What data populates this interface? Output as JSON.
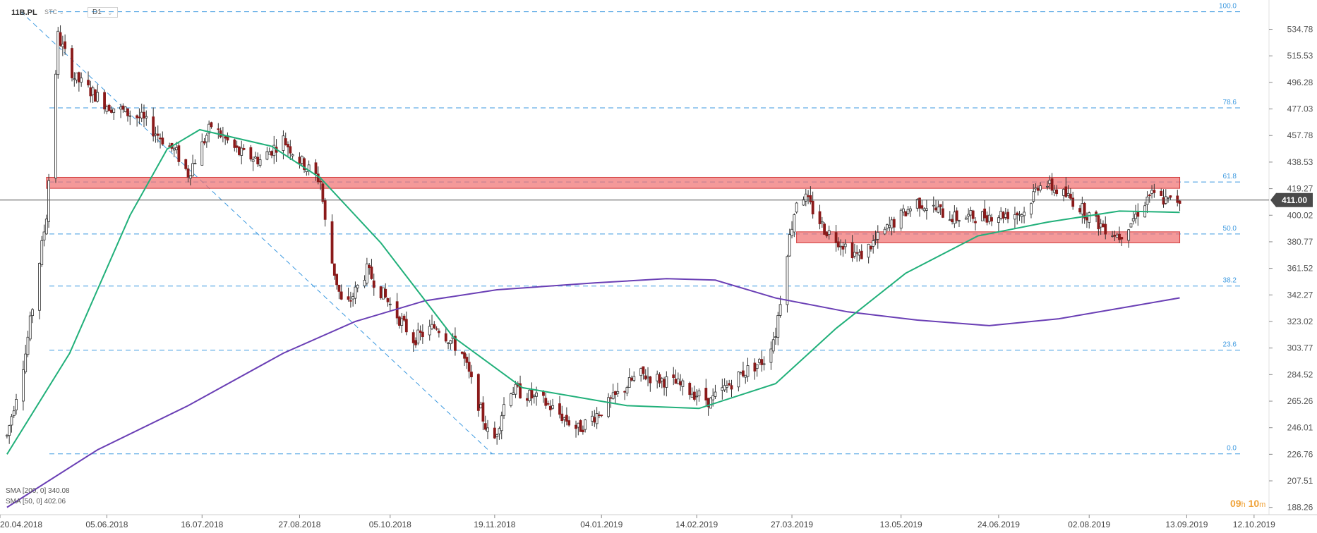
{
  "header": {
    "symbol": "11B.PL",
    "chart_type": "STC",
    "timeframe": "D1"
  },
  "timer": {
    "hours": "09",
    "h": "h",
    "minutes": "10",
    "m": "m"
  },
  "legend": [
    {
      "label": "SMA [200, 0] 340.08",
      "color": "#6a3fb5"
    },
    {
      "label": "SMA [50, 0] 402.06",
      "color": "#21b07a"
    }
  ],
  "chart_data": {
    "type": "candlestick",
    "price_axis": {
      "ticks": [
        "534.78",
        "515.53",
        "496.28",
        "477.03",
        "457.78",
        "438.53",
        "419.27",
        "400.02",
        "380.77",
        "361.52",
        "342.27",
        "323.02",
        "303.77",
        "284.52",
        "265.26",
        "246.01",
        "226.76",
        "207.51",
        "188.26"
      ]
    },
    "time_axis": {
      "labels": [
        "20.04.2018",
        "05.06.2018",
        "16.07.2018",
        "27.08.2018",
        "05.10.2018",
        "19.11.2018",
        "04.01.2019",
        "14.02.2019",
        "27.03.2019",
        "13.05.2019",
        "24.06.2019",
        "02.08.2019",
        "13.09.2019",
        "12.10.2019"
      ]
    },
    "current_price": {
      "label": "411.00",
      "value": 411.0
    },
    "fib_levels": [
      {
        "label": "100.0",
        "value": 547.5
      },
      {
        "label": "78.6",
        "value": 477.8
      },
      {
        "label": "61.8",
        "value": 424.1
      },
      {
        "label": "50.0",
        "value": 386.4
      },
      {
        "label": "38.2",
        "value": 348.7
      },
      {
        "label": "23.6",
        "value": 302.2
      },
      {
        "label": "0.0",
        "value": 227.1
      }
    ],
    "zones": [
      {
        "from": "2018-05-10",
        "to": "2019-09-10",
        "low": 419.5,
        "high": 427.5,
        "color": "#ef6e6e"
      },
      {
        "from": "2019-03-29",
        "to": "2019-09-10",
        "low": 380.0,
        "high": 388.0,
        "color": "#ef6e6e"
      }
    ],
    "trendline": {
      "from": [
        "2018-04-29",
        547.5
      ],
      "to": [
        "2018-11-18",
        227.1
      ]
    },
    "series": [
      {
        "name": "SMA [200, 0] 340.08",
        "color": "#6a3fb5",
        "x": [
          "2018-04-23",
          "2018-06-01",
          "2018-07-10",
          "2018-08-20",
          "2018-09-20",
          "2018-10-20",
          "2018-11-20",
          "2019-01-01",
          "2019-02-01",
          "2019-02-22",
          "2019-03-20",
          "2019-04-20",
          "2019-05-20",
          "2019-06-20",
          "2019-07-20",
          "2019-08-20",
          "2019-09-10"
        ],
        "values": [
          188.3,
          230.0,
          262.0,
          300.0,
          323.0,
          338.0,
          346.0,
          351.0,
          354.0,
          353.0,
          340.0,
          330.0,
          324.0,
          320.0,
          325.0,
          334.0,
          340.1
        ]
      },
      {
        "name": "SMA [50, 0] 402.06",
        "color": "#21b07a",
        "x": [
          "2018-04-23",
          "2018-05-20",
          "2018-06-15",
          "2018-07-01",
          "2018-07-15",
          "2018-08-15",
          "2018-09-05",
          "2018-10-01",
          "2018-11-01",
          "2018-12-01",
          "2019-01-15",
          "2019-02-15",
          "2019-03-20",
          "2019-04-15",
          "2019-05-15",
          "2019-06-15",
          "2019-07-15",
          "2019-08-15",
          "2019-09-10"
        ],
        "values": [
          226.8,
          300.0,
          400.0,
          448.0,
          462.0,
          450.0,
          427.0,
          380.0,
          312.0,
          275.0,
          262.0,
          260.0,
          278.0,
          318.0,
          358.0,
          385.0,
          395.0,
          403.0,
          402.1
        ]
      }
    ],
    "ylim": [
      183.0,
      556.0
    ],
    "xlim": [
      "2018-04-20",
      "2019-10-16"
    ]
  }
}
